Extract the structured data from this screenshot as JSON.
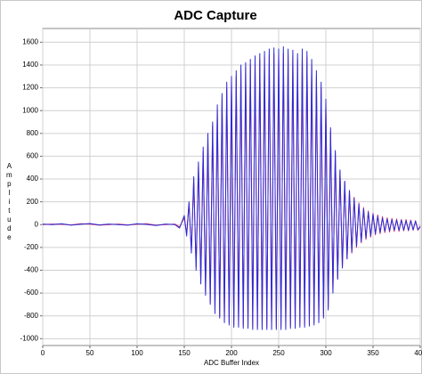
{
  "chart_data": {
    "type": "line",
    "title": "ADC Capture",
    "x_label": "ADC Buffer Index",
    "y_label": "Amplitude",
    "x": [
      0,
      10,
      20,
      30,
      40,
      50,
      60,
      70,
      80,
      90,
      100,
      110,
      120,
      130,
      140,
      145,
      150,
      152.5,
      155,
      157.5,
      160,
      162.5,
      165,
      167.5,
      170,
      172.5,
      175,
      177.5,
      180,
      182.5,
      185,
      187.5,
      190,
      192.5,
      195,
      197.5,
      200,
      202.5,
      205,
      207.5,
      210,
      212.5,
      215,
      217.5,
      220,
      222.5,
      225,
      227.5,
      230,
      232.5,
      235,
      237.5,
      240,
      242.5,
      245,
      247.5,
      250,
      252.5,
      255,
      257.5,
      260,
      262.5,
      265,
      267.5,
      270,
      272.5,
      275,
      277.5,
      280,
      282.5,
      285,
      287.5,
      290,
      292.5,
      295,
      297.5,
      300,
      302.5,
      305,
      307.5,
      310,
      312.5,
      315,
      317.5,
      320,
      322.5,
      325,
      327.5,
      330,
      332.5,
      335,
      337.5,
      340,
      342.5,
      345,
      347.5,
      350,
      352.5,
      355,
      357.5,
      360,
      362.5,
      365,
      367.5,
      370,
      372.5,
      375,
      377.5,
      380,
      382.5,
      385,
      387.5,
      390,
      392.5,
      395,
      397.5,
      400
    ],
    "series": [
      {
        "name": "Blue",
        "color": "#2b2bd6",
        "values": [
          5,
          0,
          8,
          -5,
          3,
          10,
          -3,
          5,
          0,
          -5,
          8,
          2,
          -8,
          5,
          0,
          -30,
          80,
          -100,
          200,
          -250,
          420,
          -400,
          550,
          -520,
          680,
          -620,
          800,
          -700,
          900,
          -780,
          1050,
          -820,
          1150,
          -860,
          1250,
          -880,
          1300,
          -900,
          1350,
          -900,
          1400,
          -910,
          1420,
          -910,
          1450,
          -920,
          1480,
          -920,
          1500,
          -920,
          1520,
          -920,
          1540,
          -920,
          1550,
          -920,
          1540,
          -920,
          1560,
          -920,
          1540,
          -910,
          1530,
          -910,
          1500,
          -900,
          1540,
          -900,
          1520,
          -890,
          1450,
          -880,
          1350,
          -860,
          1250,
          -820,
          1100,
          -750,
          850,
          -600,
          650,
          -480,
          480,
          -380,
          380,
          -300,
          300,
          -240,
          230,
          -190,
          180,
          -150,
          140,
          -120,
          110,
          -100,
          90,
          -80,
          75,
          -70,
          60,
          -60,
          50,
          -55,
          45,
          -50,
          40,
          -50,
          40,
          -50,
          35,
          -50,
          35,
          -45,
          30,
          -45,
          -20
        ]
      },
      {
        "name": "Red",
        "color": "#e0306a",
        "values": [
          0,
          5,
          3,
          -3,
          8,
          5,
          -5,
          0,
          5,
          -3,
          3,
          8,
          -5,
          0,
          5,
          -20,
          60,
          -80,
          180,
          -220,
          380,
          -370,
          520,
          -490,
          640,
          -590,
          760,
          -680,
          870,
          -750,
          1000,
          -800,
          1100,
          -840,
          1200,
          -860,
          1260,
          -880,
          1300,
          -880,
          1350,
          -890,
          1380,
          -890,
          1400,
          -900,
          1430,
          -900,
          1450,
          -900,
          1470,
          -900,
          1490,
          -900,
          1500,
          -900,
          1490,
          -900,
          1500,
          -900,
          1490,
          -890,
          1480,
          -890,
          1450,
          -880,
          1480,
          -880,
          1470,
          -870,
          1400,
          -860,
          1300,
          -840,
          1200,
          -800,
          1050,
          -730,
          820,
          -590,
          630,
          -470,
          470,
          -380,
          380,
          -300,
          300,
          -250,
          240,
          -200,
          190,
          -160,
          150,
          -130,
          120,
          -110,
          100,
          -90,
          85,
          -80,
          70,
          -70,
          60,
          -65,
          55,
          -60,
          50,
          -60,
          45,
          -55,
          45,
          -55,
          40,
          -50,
          35,
          -50,
          -10
        ]
      }
    ],
    "xlim": [
      0,
      400
    ],
    "xticks": [
      0,
      50,
      100,
      150,
      200,
      250,
      300,
      350,
      400
    ],
    "ylim": [
      -1060,
      1720
    ],
    "yticks": [
      -1000,
      -800,
      -600,
      -400,
      -200,
      0,
      200,
      400,
      600,
      800,
      1000,
      1200,
      1400,
      1600
    ],
    "grid": true
  }
}
